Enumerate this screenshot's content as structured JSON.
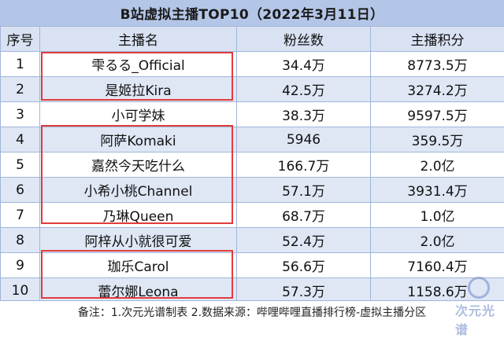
{
  "title": "B站虚拟主播TOP10（2022年3月11日）",
  "table": {
    "headers": [
      "序号",
      "主播名",
      "粉丝数",
      "主播积分"
    ],
    "rows": [
      {
        "rank": "1",
        "name": "雫るる_Official",
        "fans": "34.4万",
        "score": "8773.5万"
      },
      {
        "rank": "2",
        "name": "是姬拉Kira",
        "fans": "42.5万",
        "score": "3274.2万"
      },
      {
        "rank": "3",
        "name": "小可学妹",
        "fans": "38.3万",
        "score": "9597.5万"
      },
      {
        "rank": "4",
        "name": "阿萨Komaki",
        "fans": "5946",
        "score": "359.5万"
      },
      {
        "rank": "5",
        "name": "嘉然今天吃什么",
        "fans": "166.7万",
        "score": "2.0亿"
      },
      {
        "rank": "6",
        "name": "小希小桃Channel",
        "fans": "57.1万",
        "score": "3931.4万"
      },
      {
        "rank": "7",
        "name": "乃琳Queen",
        "fans": "68.7万",
        "score": "1.0亿"
      },
      {
        "rank": "8",
        "name": "阿梓从小就很可爱",
        "fans": "52.4万",
        "score": "2.0亿"
      },
      {
        "rank": "9",
        "name": "珈乐Carol",
        "fans": "56.6万",
        "score": "7160.4万"
      },
      {
        "rank": "10",
        "name": "蕾尔娜Leona",
        "fans": "57.3万",
        "score": "1158.6万"
      }
    ]
  },
  "note": "备注：1.次元光谱制表 2.数据来源：哔哩哔哩直播排行榜-虚拟主播分区",
  "watermark": "次元光谱",
  "colors": {
    "header": "#b4c6e7",
    "stripe": "#dfe7f5",
    "highlight": "#e03c3c"
  }
}
